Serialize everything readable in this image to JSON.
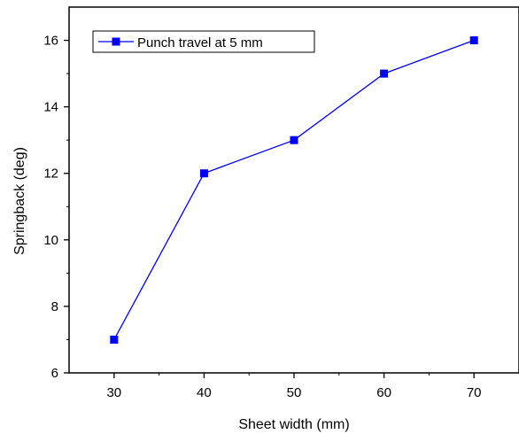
{
  "chart_data": {
    "type": "line",
    "xlabel": "Sheet width (mm)",
    "ylabel": "Springback (deg)",
    "xlim": [
      25,
      75
    ],
    "ylim": [
      6,
      17
    ],
    "xticks": [
      30,
      40,
      50,
      60,
      70
    ],
    "yticks": [
      6,
      8,
      10,
      12,
      14,
      16
    ],
    "legend_position": "top-left",
    "grid": false,
    "series": [
      {
        "name": "Punch travel at 5 mm",
        "color": "#0000ff",
        "marker": "square",
        "x": [
          30,
          40,
          50,
          60,
          70
        ],
        "y": [
          7,
          12,
          13,
          15,
          16
        ]
      }
    ]
  }
}
